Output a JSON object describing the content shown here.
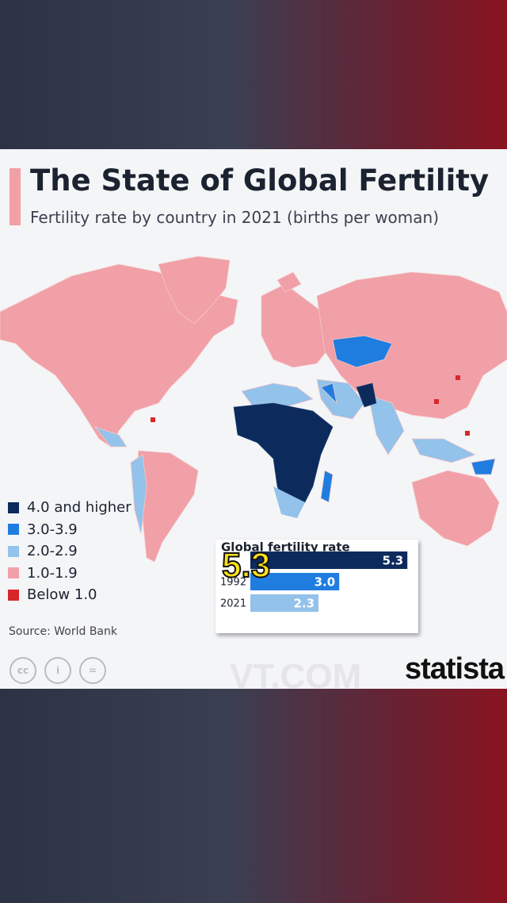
{
  "header": {
    "title": "The State of Global Fertility",
    "subtitle": "Fertility rate by country in 2021 (births per woman)"
  },
  "legend": [
    {
      "label": "4.0 and higher",
      "color": "#0d2a5c"
    },
    {
      "label": "3.0-3.9",
      "color": "#1f7de0"
    },
    {
      "label": "2.0-2.9",
      "color": "#93c2ea"
    },
    {
      "label": "1.0-1.9",
      "color": "#f0a0a6"
    },
    {
      "label": "Below 1.0",
      "color": "#d9262b"
    }
  ],
  "chart_data": {
    "type": "bar",
    "title": "Global fertility rate",
    "categories": [
      null,
      "1992",
      "2021"
    ],
    "values": [
      5.3,
      3.0,
      2.3
    ],
    "value_labels": [
      "5.3",
      "3.0",
      "2.3"
    ],
    "colors": [
      "#0d2a5c",
      "#1f7de0",
      "#93c2ea"
    ]
  },
  "caption": "5.3",
  "source": "Source: World Bank",
  "brand": "statista",
  "watermark": "VT.COM"
}
